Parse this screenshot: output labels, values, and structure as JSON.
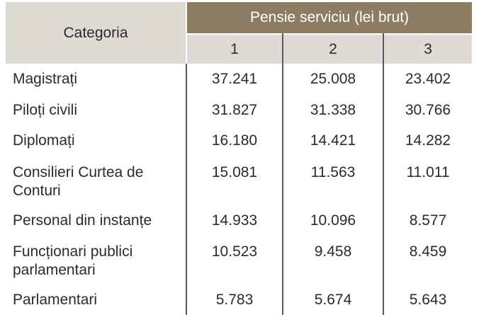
{
  "header": {
    "category_label": "Categoria",
    "group_label": "Pensie serviciu (lei brut)",
    "columns": [
      "1",
      "2",
      "3"
    ]
  },
  "rows": [
    {
      "label": "Magistrați",
      "values": [
        "37.241",
        "25.008",
        "23.402"
      ]
    },
    {
      "label": "Piloți civili",
      "values": [
        "31.827",
        "31.338",
        "30.766"
      ]
    },
    {
      "label": "Diplomați",
      "values": [
        "16.180",
        "14.421",
        "14.282"
      ]
    },
    {
      "label": "Consilieri Curtea de Conturi",
      "values": [
        "15.081",
        "11.563",
        "11.011"
      ]
    },
    {
      "label": "Personal din instanțe",
      "values": [
        "14.933",
        "10.096",
        "8.577"
      ]
    },
    {
      "label": "Funcționari publici parlamentari",
      "values": [
        "10.523",
        "9.458",
        "8.459"
      ]
    },
    {
      "label": "Parlamentari",
      "values": [
        "5.783",
        "5.674",
        "5.643"
      ]
    }
  ]
}
